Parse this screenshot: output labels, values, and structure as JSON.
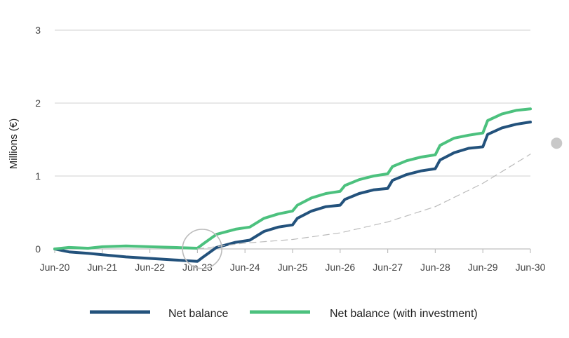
{
  "chart_data": {
    "type": "line",
    "ylabel": "Millions (€)",
    "ylim": [
      0,
      3
    ],
    "yticks": [
      "0",
      "1",
      "2",
      "3"
    ],
    "x_labels": [
      "Jun-20",
      "Jun-21",
      "Jun-22",
      "Jun-23",
      "Jun-24",
      "Jun-25",
      "Jun-26",
      "Jun-27",
      "Jun-28",
      "Jun-29",
      "Jun-30"
    ],
    "xlim": [
      0,
      10
    ],
    "grid": true,
    "legend_position": "bottom",
    "series": [
      {
        "name": "Net balance",
        "color": "#23527c",
        "x": [
          0,
          0.3,
          0.7,
          1.0,
          1.5,
          2.0,
          2.5,
          3.0,
          3.1,
          3.4,
          3.8,
          4.1,
          4.4,
          4.7,
          5.0,
          5.1,
          5.4,
          5.7,
          6.0,
          6.1,
          6.4,
          6.7,
          7.0,
          7.1,
          7.4,
          7.7,
          8.0,
          8.1,
          8.4,
          8.7,
          9.0,
          9.1,
          9.4,
          9.7,
          10.0
        ],
        "y": [
          0.0,
          -0.04,
          -0.06,
          -0.08,
          -0.11,
          -0.13,
          -0.15,
          -0.17,
          -0.12,
          0.02,
          0.09,
          0.12,
          0.24,
          0.3,
          0.33,
          0.42,
          0.52,
          0.58,
          0.6,
          0.68,
          0.76,
          0.81,
          0.83,
          0.94,
          1.02,
          1.07,
          1.1,
          1.22,
          1.32,
          1.38,
          1.4,
          1.57,
          1.66,
          1.71,
          1.74
        ]
      },
      {
        "name": "Net balance (with investment)",
        "color": "#4cc17e",
        "x": [
          0,
          0.3,
          0.7,
          1.0,
          1.5,
          2.0,
          2.5,
          3.0,
          3.1,
          3.4,
          3.8,
          4.1,
          4.4,
          4.7,
          5.0,
          5.1,
          5.4,
          5.7,
          6.0,
          6.1,
          6.4,
          6.7,
          7.0,
          7.1,
          7.4,
          7.7,
          8.0,
          8.1,
          8.4,
          8.7,
          9.0,
          9.1,
          9.4,
          9.7,
          10.0
        ],
        "y": [
          0.0,
          0.02,
          0.01,
          0.03,
          0.04,
          0.03,
          0.02,
          0.01,
          0.06,
          0.2,
          0.27,
          0.3,
          0.42,
          0.48,
          0.52,
          0.6,
          0.7,
          0.76,
          0.79,
          0.87,
          0.95,
          1.0,
          1.03,
          1.13,
          1.21,
          1.26,
          1.29,
          1.42,
          1.52,
          1.56,
          1.59,
          1.76,
          1.85,
          1.9,
          1.92
        ]
      },
      {
        "name": "",
        "color": "#bbbbbb",
        "dashed": true,
        "x": [
          3.0,
          4.0,
          5.0,
          6.0,
          7.0,
          8.0,
          9.0,
          10.0
        ],
        "y": [
          0.0,
          0.08,
          0.13,
          0.22,
          0.37,
          0.58,
          0.9,
          1.3
        ]
      }
    ],
    "annotations": [
      {
        "type": "circle",
        "x": 3.1,
        "y": 0.0,
        "color": "#bbbbbb"
      },
      {
        "type": "dot",
        "x": 10.55,
        "y": 1.45,
        "color": "#c8c8c8"
      }
    ]
  }
}
